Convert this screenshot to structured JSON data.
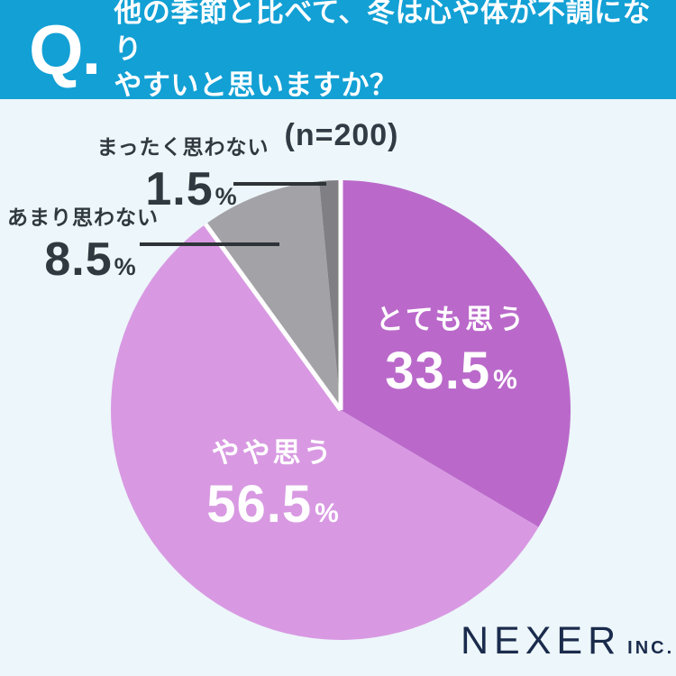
{
  "header": {
    "q_mark": "Q.",
    "question_lines": [
      "他の季節と比べて、冬は心や体が不調になり",
      "やすいと思いますか？"
    ]
  },
  "sample_size_note": "(n=200)",
  "percent_sign": "%",
  "chart_data": {
    "type": "pie",
    "title": "他の季節と比べて、冬は心や体が不調になりやすいと思いますか？",
    "sample_size": 200,
    "unit": "%",
    "direction": "clockwise",
    "start_angle_deg": 0,
    "segments": [
      {
        "label": "とても思う",
        "value": 33.5,
        "color": "#BA69CA",
        "text_color": "#FFFFFF",
        "label_position": "inside"
      },
      {
        "label": "やや思う",
        "value": 56.5,
        "color": "#D899E2",
        "text_color": "#FFFFFF",
        "label_position": "inside"
      },
      {
        "label": "あまり思わない",
        "value": 8.5,
        "color": "#A3A2A6",
        "text_color": "#30393F",
        "label_position": "outside"
      },
      {
        "label": "まったく思わない",
        "value": 1.5,
        "color": "#807F83",
        "text_color": "#30393F",
        "label_position": "outside"
      }
    ],
    "separators_after": [
      1,
      3
    ],
    "separator_color": "#FFFFFF",
    "legend": "none",
    "grid": false
  },
  "footer": {
    "brand": "NEXER",
    "brand_suffix": "INC."
  },
  "colors": {
    "header_bg": "#12A0D5",
    "background": "#EDF6FA",
    "leader_line": "#2E3338",
    "callout_text": "#30393F",
    "brand_navy": "#1A2B4C"
  }
}
